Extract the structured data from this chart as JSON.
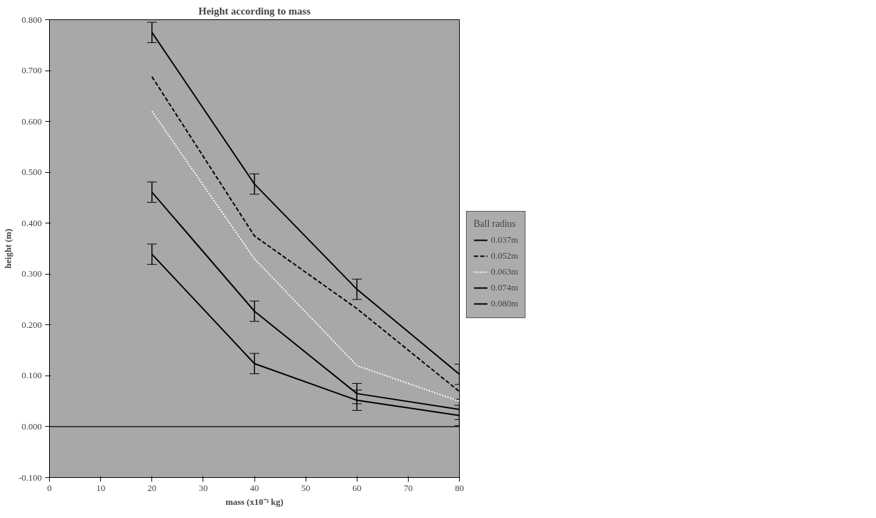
{
  "chart_data": {
    "type": "line",
    "title": "Height according to mass",
    "xlabel": "mass (x10⁻³ kg)",
    "ylabel": "height (m)",
    "legend_title": "Ball radius",
    "legend": "right",
    "grid": false,
    "x": [
      20,
      40,
      60,
      80
    ],
    "xlim": [
      0,
      80
    ],
    "xticks": [
      0,
      10,
      20,
      30,
      40,
      50,
      60,
      70,
      80
    ],
    "ylim": [
      -0.1,
      0.8
    ],
    "yticks": [
      {
        "value": -0.1,
        "label": "-0.100"
      },
      {
        "value": 0,
        "label": "0.000"
      },
      {
        "value": 0.1,
        "label": "0.100"
      },
      {
        "value": 0.2,
        "label": "0.200"
      },
      {
        "value": 0.3,
        "label": "0.300"
      },
      {
        "value": 0.4,
        "label": "0.400"
      },
      {
        "value": 0.5,
        "label": "0.500"
      },
      {
        "value": 0.6,
        "label": "0.600"
      },
      {
        "value": 0.7,
        "label": "0.700"
      },
      {
        "value": 0.8,
        "label": "0.800"
      }
    ],
    "ref_lines": [
      {
        "axis": "y",
        "value": 0,
        "label": null,
        "color": "#000000"
      }
    ],
    "series": [
      {
        "name": "0.037m",
        "color": "#000000",
        "line_style": "solid",
        "values": [
          0.775,
          0.477,
          0.27,
          0.103
        ],
        "errors": [
          0.02,
          0.02,
          0.02,
          0.02
        ]
      },
      {
        "name": "0.052m",
        "color": "#000000",
        "line_style": "dashed",
        "values": [
          0.688,
          0.375,
          0.232,
          0.069
        ]
      },
      {
        "name": "0.063m",
        "color": "#ffffff",
        "line_style": "dotted",
        "values": [
          0.62,
          0.33,
          0.12,
          0.05
        ]
      },
      {
        "name": "0.074m",
        "color": "#000000",
        "line_style": "solid",
        "values": [
          0.461,
          0.227,
          0.065,
          0.034
        ],
        "errors": [
          0.02,
          0.02,
          0.02,
          0.02
        ]
      },
      {
        "name": "0.080m",
        "color": "#000000",
        "line_style": "solid",
        "values": [
          0.339,
          0.124,
          0.052,
          0.022
        ],
        "errors": [
          0.02,
          0.02,
          0.02,
          0.02
        ]
      }
    ]
  }
}
